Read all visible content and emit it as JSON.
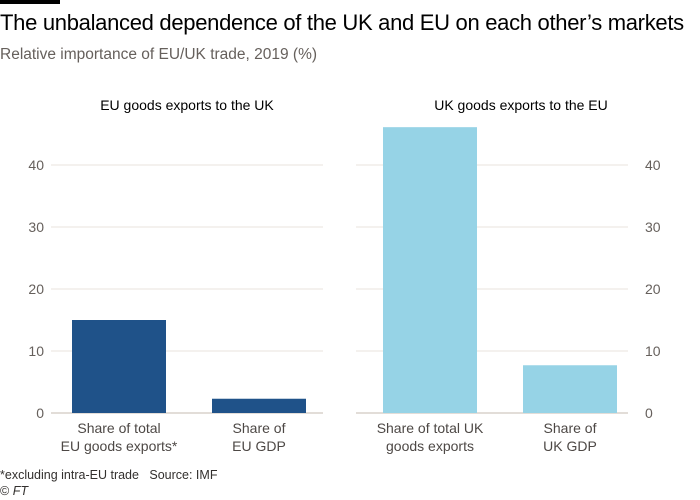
{
  "chart_data": [
    {
      "type": "bar",
      "title": "EU goods exports to the UK",
      "categories": [
        [
          "Share of total",
          "EU goods exports*"
        ],
        [
          "Share of",
          "EU GDP"
        ]
      ],
      "values": [
        15.0,
        2.3
      ],
      "ylim": [
        0,
        46
      ],
      "yticks": [
        0,
        10,
        20,
        30,
        40
      ],
      "y_axis_side": "left",
      "color": "#1f5289",
      "grid": true
    },
    {
      "type": "bar",
      "title": "UK goods exports to the EU",
      "categories": [
        [
          "Share of total UK",
          "goods exports"
        ],
        [
          "Share of",
          "UK GDP"
        ]
      ],
      "values": [
        46.1,
        7.7
      ],
      "ylim": [
        0,
        46
      ],
      "yticks": [
        0,
        10,
        20,
        30,
        40
      ],
      "y_axis_side": "right",
      "color": "#96d3e6",
      "grid": true
    }
  ],
  "header": {
    "title": "The unbalanced dependence of the UK and EU on each other’s markets",
    "subtitle": "Relative importance of EU/UK trade, 2019 (%)"
  },
  "footer": {
    "note": "*excluding intra-EU trade   Source: IMF",
    "copyright_symbol": "©",
    "copyright_brand": "FT"
  },
  "colors": {
    "grid": "#e9e3dd",
    "baseline": "#d9d2cc"
  }
}
